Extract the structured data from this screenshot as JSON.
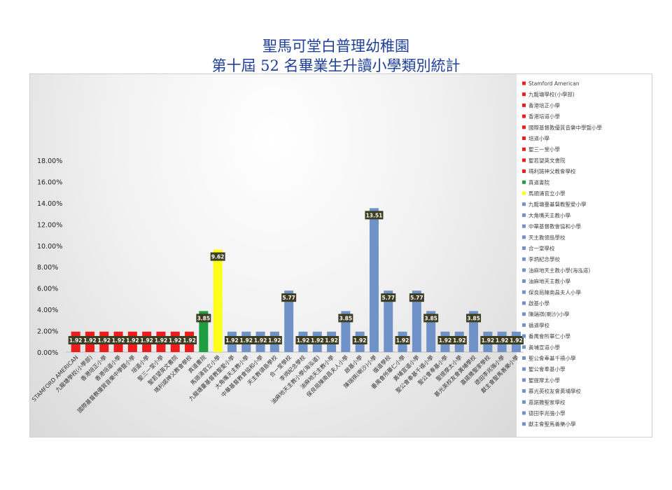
{
  "title_line1": "聖馬可堂白普理幼稚園",
  "title_line2": "第十屆 52 名畢業生升讀小學類別統計",
  "colors": {
    "red": "#ee1c1c",
    "green": "#1e9e3e",
    "yellow": "#ffff1a",
    "blue": "#6f93c8",
    "label_bg": "#3d3d22",
    "title": "#1f3f99"
  },
  "chart_data": {
    "type": "bar",
    "ylim": [
      0,
      18
    ],
    "yticks": [
      "0.00%",
      "2.00%",
      "4.00%",
      "6.00%",
      "8.00%",
      "10.00%",
      "12.00%",
      "14.00%",
      "16.00%",
      "18.00%"
    ],
    "legend_position": "right",
    "grid": false,
    "categories": [
      "STAMFORD AMERICAN",
      "九龍塘學校(小學部)",
      "香港培正小學",
      "香港培道小學",
      "國際基督教優質音樂中學暨小學",
      "培道小學",
      "聖三一堂小學",
      "聖若望英文書院",
      "瑪利諾神父教會學校",
      "真道書院",
      "馬頭涌官立小學",
      "九龍塘臺基督教聖愛小學",
      "大角嘴天主教小學",
      "中華基督教會協和小學",
      "天主教領島學校",
      "合一堂學校",
      "李炳紀念學校",
      "油麻地天主教小學(海泓道)",
      "油麻地天主教小學",
      "保良局陳南昌夫人小學",
      "啟基小學",
      "陳瑞祺(喇沙)小學",
      "循道學校",
      "番禺會所華仁小學",
      "黃埔宣道小學",
      "聖公會奉基千禧小學",
      "聖公會奉基小學",
      "聖提摩太小學",
      "慕光英校友會黃埔學校",
      "嘉諾撒聖家學校",
      "德田李兆強小學",
      "獻主會聖馬善樂小學"
    ],
    "legend_labels": [
      "Stamford American",
      "九龍塘學校(小學部)",
      "香港培正小學",
      "香港培道小學",
      "國際基督教優質音樂中學暨小學",
      "培道小學",
      "聖三一堂小學",
      "聖若望英文書院",
      "瑪利諾神父教會學校",
      "真道書院",
      "馬頭涌官立小學",
      "九龍塘臺基督教聖愛小學",
      "大角嘴天主教小學",
      "中華基督教會協和小學",
      "天主教領島學校",
      "合一堂學校",
      "李炳紀念學校",
      "油麻地天主教小學(海泓道)",
      "油麻地天主教小學",
      "保良局陳南昌夫人小學",
      "啟基小學",
      "陳瑞祺(喇沙)小學",
      "循道學校",
      "番禺會所華仁小學",
      "黃埔宣道小學",
      "聖公會奉基千禧小學",
      "聖公會奉基小學",
      "聖提摩太小學",
      "慕光英校友會黃埔學校",
      "嘉諾撒聖家學校",
      "德田李兆強小學",
      "獻主會聖馬善樂小學"
    ],
    "values": [
      1.92,
      1.92,
      1.92,
      1.92,
      1.92,
      1.92,
      1.92,
      1.92,
      1.92,
      3.85,
      9.62,
      1.92,
      1.92,
      1.92,
      1.92,
      5.77,
      1.92,
      1.92,
      1.92,
      3.85,
      1.92,
      13.51,
      5.77,
      1.92,
      5.77,
      3.85,
      1.92,
      1.92,
      3.85,
      1.92,
      1.92,
      1.92
    ],
    "data_labels": [
      "1.92",
      "1.92",
      "1.92",
      "1.92",
      "1.92",
      "1.92",
      "1.92",
      "1.92",
      "1.92",
      "3.85",
      "9.62",
      "1.92",
      "1.92",
      "1.92",
      "1.92",
      "5.77",
      "1.92",
      "1.92",
      "1.92",
      "3.85",
      "1.92",
      "13.51",
      "5.77",
      "1.92",
      "5.77",
      "3.85",
      "1.92",
      "1.92",
      "3.85",
      "1.92",
      "1.92",
      "1.92"
    ],
    "bar_groups": [
      "red",
      "red",
      "red",
      "red",
      "red",
      "red",
      "red",
      "red",
      "red",
      "green",
      "yellow",
      "blue",
      "blue",
      "blue",
      "blue",
      "blue",
      "blue",
      "blue",
      "blue",
      "blue",
      "blue",
      "blue",
      "blue",
      "blue",
      "blue",
      "blue",
      "blue",
      "blue",
      "blue",
      "blue",
      "blue",
      "blue"
    ]
  }
}
